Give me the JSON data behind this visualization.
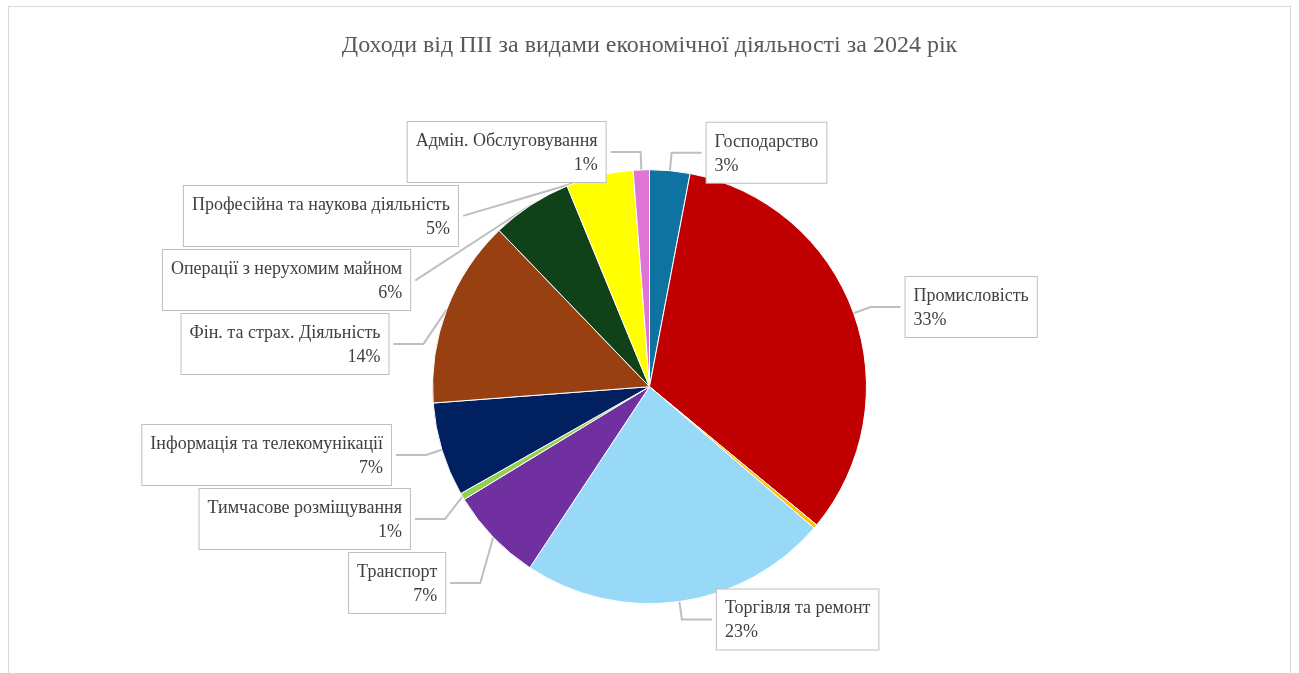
{
  "chart_data": {
    "type": "pie",
    "title": "Доходи від ПІІ за видами економічної діяльності за 2024 рік",
    "categories": [
      "Господарство",
      "Промисловість",
      null,
      "Торгівля та ремонт",
      "Транспорт",
      "Тимчасове розміщування",
      "Інформація та телекомунікації",
      "Фін. та страх. Діяльність",
      "Операції з нерухомим майном",
      "Професійна та наукова діяльність",
      "Адмін. Обслуговування"
    ],
    "values": [
      3,
      33,
      0.3,
      23,
      7,
      0.5,
      7,
      14,
      6,
      5,
      1.2
    ],
    "value_labels": [
      "3%",
      "33%",
      null,
      "23%",
      "7%",
      "1%",
      "7%",
      "14%",
      "6%",
      "5%",
      "1%"
    ],
    "colors": [
      "#0e73a0",
      "#c00000",
      "#ffc000",
      "#97d9f6",
      "#7030a0",
      "#92d050",
      "#002060",
      "#984012",
      "#10421a",
      "#ffff00",
      "#dd74d6"
    ],
    "legend": false
  }
}
